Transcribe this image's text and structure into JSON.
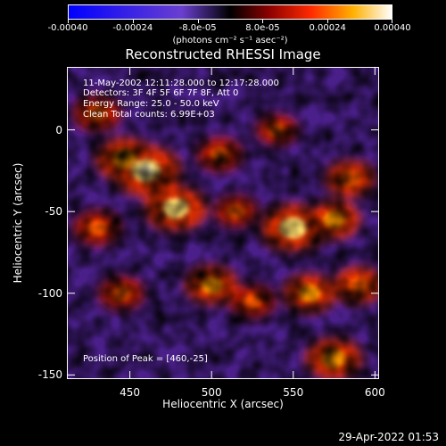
{
  "colorbar": {
    "tick_labels": [
      "-0.00040",
      "-0.00024",
      "-8.0e-05",
      "8.0e-05",
      "0.00024",
      "0.00040"
    ],
    "units": "(photons cm⁻² s⁻¹ asec⁻²)",
    "range": [
      -0.0004,
      0.0004
    ],
    "colormap": "blue-black-red-yellow-white"
  },
  "title": "Reconstructed RHESSI Image",
  "annotations": {
    "time": "11-May-2002 12:11:28.000 to 12:17:28.000",
    "detectors": "Detectors: 3F 4F 5F 6F 7F 8F, Att 0",
    "energy": "Energy Range: 25.0 - 50.0 keV",
    "method": "Clean      Total counts: 6.99E+03",
    "peak": "Position of Peak = [460,-25]"
  },
  "axes": {
    "xlabel": "Heliocentric X (arcsec)",
    "ylabel": "Heliocentric Y (arcsec)",
    "xlim": [
      412,
      602
    ],
    "ylim": [
      -152,
      38
    ],
    "xticks": [
      {
        "value": 450,
        "label": "450"
      },
      {
        "value": 500,
        "label": "500"
      },
      {
        "value": 550,
        "label": "550"
      },
      {
        "value": 600,
        "label": "600"
      }
    ],
    "yticks": [
      {
        "value": 0,
        "label": "0"
      },
      {
        "value": -50,
        "label": "-50"
      },
      {
        "value": -100,
        "label": "-100"
      },
      {
        "value": -150,
        "label": "-150"
      }
    ]
  },
  "image": {
    "background_color": "#4a1f8a",
    "bright_sources": [
      {
        "x": 460,
        "y": -25,
        "intensity": 1.0
      },
      {
        "x": 447,
        "y": -18,
        "intensity": 0.75
      },
      {
        "x": 478,
        "y": -48,
        "intensity": 0.85
      },
      {
        "x": 505,
        "y": -15,
        "intensity": 0.45
      },
      {
        "x": 550,
        "y": -60,
        "intensity": 0.9
      },
      {
        "x": 575,
        "y": -55,
        "intensity": 0.6
      },
      {
        "x": 585,
        "y": -30,
        "intensity": 0.55
      },
      {
        "x": 560,
        "y": -100,
        "intensity": 0.6
      },
      {
        "x": 590,
        "y": -95,
        "intensity": 0.55
      },
      {
        "x": 500,
        "y": -95,
        "intensity": 0.6
      },
      {
        "x": 525,
        "y": -105,
        "intensity": 0.45
      },
      {
        "x": 430,
        "y": -60,
        "intensity": 0.5
      },
      {
        "x": 445,
        "y": -100,
        "intensity": 0.45
      },
      {
        "x": 430,
        "y": 10,
        "intensity": 0.5
      },
      {
        "x": 575,
        "y": -140,
        "intensity": 0.7
      },
      {
        "x": 540,
        "y": 0,
        "intensity": 0.35
      },
      {
        "x": 515,
        "y": -50,
        "intensity": 0.4
      }
    ]
  },
  "timestamp": "29-Apr-2022 01:53"
}
